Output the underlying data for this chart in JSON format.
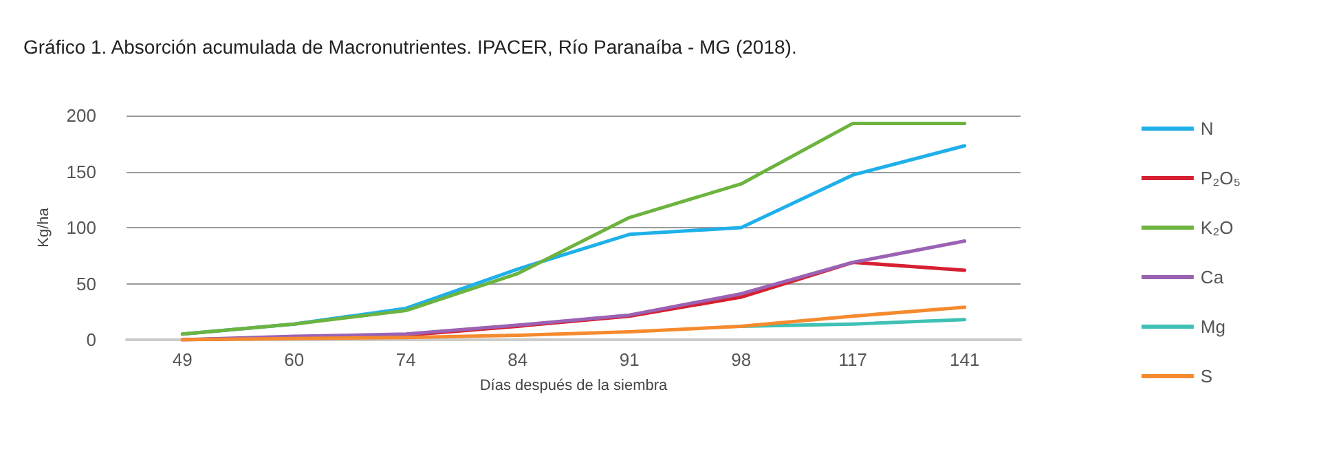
{
  "chart_data": {
    "type": "line",
    "title": "Gráfico 1. Absorción acumulada de Macronutrientes. IPACER, Río Paranaíba - MG (2018).",
    "xlabel": "Días después de la siembra",
    "ylabel": "Kg/ha",
    "categories": [
      "49",
      "60",
      "74",
      "84",
      "91",
      "98",
      "117",
      "141"
    ],
    "series": [
      {
        "name": "N",
        "color": "#1fb0ea",
        "values": [
          5,
          14,
          28,
          63,
          94,
          100,
          147,
          173
        ]
      },
      {
        "name": "P₂O₅",
        "color": "#d62031",
        "values": [
          0,
          2,
          4,
          12,
          21,
          38,
          69,
          62
        ]
      },
      {
        "name": "K₂O",
        "color": "#6db33f",
        "values": [
          5,
          14,
          26,
          59,
          109,
          139,
          193,
          193
        ]
      },
      {
        "name": "Ca",
        "color": "#9b62b4",
        "values": [
          0,
          3,
          5,
          13,
          22,
          41,
          69,
          88
        ]
      },
      {
        "name": "Mg",
        "color": "#3ec1b4",
        "values": [
          null,
          null,
          null,
          null,
          null,
          12,
          14,
          18
        ]
      },
      {
        "name": "S",
        "color": "#f58a2e",
        "values": [
          0,
          1,
          2,
          4,
          7,
          12,
          21,
          29
        ]
      }
    ],
    "ylim": [
      0,
      200
    ],
    "yticks": [
      0,
      50,
      100,
      150,
      200
    ],
    "grid": "y",
    "legend": "right",
    "marker": "none",
    "line_style": "solid"
  }
}
